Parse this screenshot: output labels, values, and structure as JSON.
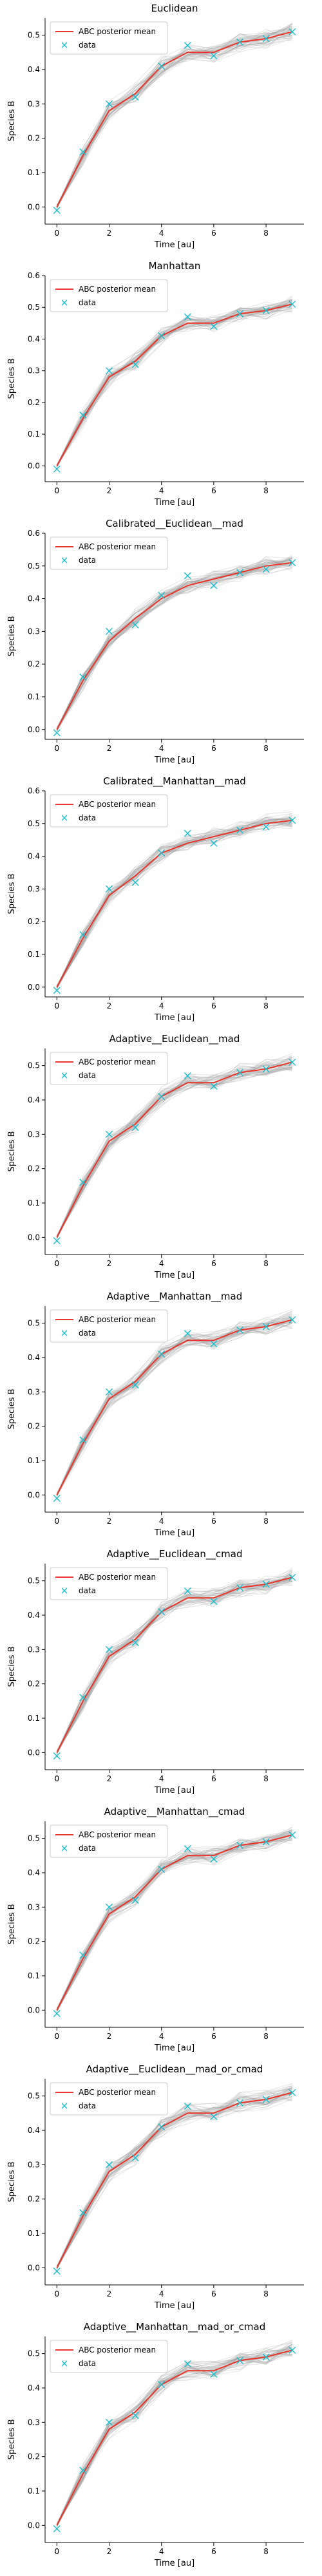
{
  "chart_data": [
    {
      "type": "line",
      "title": "Euclidean",
      "xlabel": "Time [au]",
      "ylabel": "Species B",
      "xlim": [
        -0.45,
        9.45
      ],
      "ylim": [
        -0.05,
        0.55
      ],
      "xticks": [
        0,
        2,
        4,
        6,
        8
      ],
      "yticks": [
        0.0,
        0.1,
        0.2,
        0.3,
        0.4,
        0.5
      ],
      "legend": "top-left",
      "grid": false,
      "series": [
        {
          "name": "ABC posterior mean",
          "style": "line",
          "color": "#e8362a",
          "x": [
            0,
            1,
            2,
            3,
            4,
            5,
            6,
            7,
            8,
            9
          ],
          "y": [
            0.0,
            0.15,
            0.28,
            0.33,
            0.41,
            0.45,
            0.45,
            0.48,
            0.49,
            0.51
          ]
        },
        {
          "name": "data",
          "style": "scatter",
          "color": "#17becf",
          "x": [
            0,
            1,
            2,
            3,
            4,
            5,
            6,
            7,
            8,
            9
          ],
          "y": [
            -0.01,
            0.16,
            0.3,
            0.32,
            0.41,
            0.47,
            0.44,
            0.48,
            0.49,
            0.51
          ]
        }
      ]
    },
    {
      "type": "line",
      "title": "Manhattan",
      "xlabel": "Time [au]",
      "ylabel": "Species B",
      "xlim": [
        -0.45,
        9.45
      ],
      "ylim": [
        -0.05,
        0.6
      ],
      "xticks": [
        0,
        2,
        4,
        6,
        8
      ],
      "yticks": [
        0.0,
        0.1,
        0.2,
        0.3,
        0.4,
        0.5,
        0.6
      ],
      "legend": "top-left",
      "grid": false,
      "series": [
        {
          "name": "ABC posterior mean",
          "style": "line",
          "color": "#e8362a",
          "x": [
            0,
            1,
            2,
            3,
            4,
            5,
            6,
            7,
            8,
            9
          ],
          "y": [
            0.0,
            0.15,
            0.28,
            0.33,
            0.41,
            0.45,
            0.45,
            0.48,
            0.49,
            0.51
          ]
        },
        {
          "name": "data",
          "style": "scatter",
          "color": "#17becf",
          "x": [
            0,
            1,
            2,
            3,
            4,
            5,
            6,
            7,
            8,
            9
          ],
          "y": [
            -0.01,
            0.16,
            0.3,
            0.32,
            0.41,
            0.47,
            0.44,
            0.48,
            0.49,
            0.51
          ]
        }
      ]
    },
    {
      "type": "line",
      "title": "Calibrated__Euclidean__mad",
      "xlabel": "Time [au]",
      "ylabel": "Species B",
      "xlim": [
        -0.45,
        9.45
      ],
      "ylim": [
        -0.03,
        0.6
      ],
      "xticks": [
        0,
        2,
        4,
        6,
        8
      ],
      "yticks": [
        0.0,
        0.1,
        0.2,
        0.3,
        0.4,
        0.5,
        0.6
      ],
      "legend": "top-left",
      "grid": false,
      "series": [
        {
          "name": "ABC posterior mean",
          "style": "line",
          "color": "#e8362a",
          "x": [
            0,
            1,
            2,
            3,
            4,
            5,
            6,
            7,
            8,
            9
          ],
          "y": [
            0.0,
            0.15,
            0.27,
            0.34,
            0.4,
            0.44,
            0.46,
            0.48,
            0.5,
            0.51
          ]
        },
        {
          "name": "data",
          "style": "scatter",
          "color": "#17becf",
          "x": [
            0,
            1,
            2,
            3,
            4,
            5,
            6,
            7,
            8,
            9
          ],
          "y": [
            -0.01,
            0.16,
            0.3,
            0.32,
            0.41,
            0.47,
            0.44,
            0.48,
            0.49,
            0.51
          ]
        }
      ]
    },
    {
      "type": "line",
      "title": "Calibrated__Manhattan__mad",
      "xlabel": "Time [au]",
      "ylabel": "Species B",
      "xlim": [
        -0.45,
        9.45
      ],
      "ylim": [
        -0.03,
        0.6
      ],
      "xticks": [
        0,
        2,
        4,
        6,
        8
      ],
      "yticks": [
        0.0,
        0.1,
        0.2,
        0.3,
        0.4,
        0.5,
        0.6
      ],
      "legend": "top-left",
      "grid": false,
      "series": [
        {
          "name": "ABC posterior mean",
          "style": "line",
          "color": "#e8362a",
          "x": [
            0,
            1,
            2,
            3,
            4,
            5,
            6,
            7,
            8,
            9
          ],
          "y": [
            0.0,
            0.15,
            0.28,
            0.34,
            0.41,
            0.44,
            0.46,
            0.48,
            0.5,
            0.51
          ]
        },
        {
          "name": "data",
          "style": "scatter",
          "color": "#17becf",
          "x": [
            0,
            1,
            2,
            3,
            4,
            5,
            6,
            7,
            8,
            9
          ],
          "y": [
            -0.01,
            0.16,
            0.3,
            0.32,
            0.41,
            0.47,
            0.44,
            0.48,
            0.49,
            0.51
          ]
        }
      ]
    },
    {
      "type": "line",
      "title": "Adaptive__Euclidean__mad",
      "xlabel": "Time [au]",
      "ylabel": "Species B",
      "xlim": [
        -0.45,
        9.45
      ],
      "ylim": [
        -0.05,
        0.55
      ],
      "xticks": [
        0,
        2,
        4,
        6,
        8
      ],
      "yticks": [
        0.0,
        0.1,
        0.2,
        0.3,
        0.4,
        0.5
      ],
      "legend": "top-left",
      "grid": false,
      "series": [
        {
          "name": "ABC posterior mean",
          "style": "line",
          "color": "#e8362a",
          "x": [
            0,
            1,
            2,
            3,
            4,
            5,
            6,
            7,
            8,
            9
          ],
          "y": [
            0.0,
            0.15,
            0.28,
            0.33,
            0.41,
            0.45,
            0.45,
            0.48,
            0.49,
            0.51
          ]
        },
        {
          "name": "data",
          "style": "scatter",
          "color": "#17becf",
          "x": [
            0,
            1,
            2,
            3,
            4,
            5,
            6,
            7,
            8,
            9
          ],
          "y": [
            -0.01,
            0.16,
            0.3,
            0.32,
            0.41,
            0.47,
            0.44,
            0.48,
            0.49,
            0.51
          ]
        }
      ]
    },
    {
      "type": "line",
      "title": "Adaptive__Manhattan__mad",
      "xlabel": "Time [au]",
      "ylabel": "Species B",
      "xlim": [
        -0.45,
        9.45
      ],
      "ylim": [
        -0.05,
        0.55
      ],
      "xticks": [
        0,
        2,
        4,
        6,
        8
      ],
      "yticks": [
        0.0,
        0.1,
        0.2,
        0.3,
        0.4,
        0.5
      ],
      "legend": "top-left",
      "grid": false,
      "series": [
        {
          "name": "ABC posterior mean",
          "style": "line",
          "color": "#e8362a",
          "x": [
            0,
            1,
            2,
            3,
            4,
            5,
            6,
            7,
            8,
            9
          ],
          "y": [
            0.0,
            0.15,
            0.28,
            0.33,
            0.41,
            0.45,
            0.45,
            0.48,
            0.49,
            0.51
          ]
        },
        {
          "name": "data",
          "style": "scatter",
          "color": "#17becf",
          "x": [
            0,
            1,
            2,
            3,
            4,
            5,
            6,
            7,
            8,
            9
          ],
          "y": [
            -0.01,
            0.16,
            0.3,
            0.32,
            0.41,
            0.47,
            0.44,
            0.48,
            0.49,
            0.51
          ]
        }
      ]
    },
    {
      "type": "line",
      "title": "Adaptive__Euclidean__cmad",
      "xlabel": "Time [au]",
      "ylabel": "Species B",
      "xlim": [
        -0.45,
        9.45
      ],
      "ylim": [
        -0.05,
        0.55
      ],
      "xticks": [
        0,
        2,
        4,
        6,
        8
      ],
      "yticks": [
        0.0,
        0.1,
        0.2,
        0.3,
        0.4,
        0.5
      ],
      "legend": "top-left",
      "grid": false,
      "series": [
        {
          "name": "ABC posterior mean",
          "style": "line",
          "color": "#e8362a",
          "x": [
            0,
            1,
            2,
            3,
            4,
            5,
            6,
            7,
            8,
            9
          ],
          "y": [
            0.0,
            0.15,
            0.28,
            0.33,
            0.41,
            0.45,
            0.45,
            0.48,
            0.49,
            0.51
          ]
        },
        {
          "name": "data",
          "style": "scatter",
          "color": "#17becf",
          "x": [
            0,
            1,
            2,
            3,
            4,
            5,
            6,
            7,
            8,
            9
          ],
          "y": [
            -0.01,
            0.16,
            0.3,
            0.32,
            0.41,
            0.47,
            0.44,
            0.48,
            0.49,
            0.51
          ]
        }
      ]
    },
    {
      "type": "line",
      "title": "Adaptive__Manhattan__cmad",
      "xlabel": "Time [au]",
      "ylabel": "Species B",
      "xlim": [
        -0.45,
        9.45
      ],
      "ylim": [
        -0.05,
        0.55
      ],
      "xticks": [
        0,
        2,
        4,
        6,
        8
      ],
      "yticks": [
        0.0,
        0.1,
        0.2,
        0.3,
        0.4,
        0.5
      ],
      "legend": "top-left",
      "grid": false,
      "series": [
        {
          "name": "ABC posterior mean",
          "style": "line",
          "color": "#e8362a",
          "x": [
            0,
            1,
            2,
            3,
            4,
            5,
            6,
            7,
            8,
            9
          ],
          "y": [
            0.0,
            0.15,
            0.28,
            0.33,
            0.41,
            0.45,
            0.45,
            0.48,
            0.49,
            0.51
          ]
        },
        {
          "name": "data",
          "style": "scatter",
          "color": "#17becf",
          "x": [
            0,
            1,
            2,
            3,
            4,
            5,
            6,
            7,
            8,
            9
          ],
          "y": [
            -0.01,
            0.16,
            0.3,
            0.32,
            0.41,
            0.47,
            0.44,
            0.48,
            0.49,
            0.51
          ]
        }
      ]
    },
    {
      "type": "line",
      "title": "Adaptive__Euclidean__mad_or_cmad",
      "xlabel": "Time [au]",
      "ylabel": "Species B",
      "xlim": [
        -0.45,
        9.45
      ],
      "ylim": [
        -0.05,
        0.55
      ],
      "xticks": [
        0,
        2,
        4,
        6,
        8
      ],
      "yticks": [
        0.0,
        0.1,
        0.2,
        0.3,
        0.4,
        0.5
      ],
      "legend": "top-left",
      "grid": false,
      "series": [
        {
          "name": "ABC posterior mean",
          "style": "line",
          "color": "#e8362a",
          "x": [
            0,
            1,
            2,
            3,
            4,
            5,
            6,
            7,
            8,
            9
          ],
          "y": [
            0.0,
            0.15,
            0.28,
            0.33,
            0.41,
            0.45,
            0.45,
            0.48,
            0.49,
            0.51
          ]
        },
        {
          "name": "data",
          "style": "scatter",
          "color": "#17becf",
          "x": [
            0,
            1,
            2,
            3,
            4,
            5,
            6,
            7,
            8,
            9
          ],
          "y": [
            -0.01,
            0.16,
            0.3,
            0.32,
            0.41,
            0.47,
            0.44,
            0.48,
            0.49,
            0.51
          ]
        }
      ]
    },
    {
      "type": "line",
      "title": "Adaptive__Manhattan__mad_or_cmad",
      "xlabel": "Time [au]",
      "ylabel": "Species B",
      "xlim": [
        -0.45,
        9.45
      ],
      "ylim": [
        -0.05,
        0.55
      ],
      "xticks": [
        0,
        2,
        4,
        6,
        8
      ],
      "yticks": [
        0.0,
        0.1,
        0.2,
        0.3,
        0.4,
        0.5
      ],
      "legend": "top-left",
      "grid": false,
      "series": [
        {
          "name": "ABC posterior mean",
          "style": "line",
          "color": "#e8362a",
          "x": [
            0,
            1,
            2,
            3,
            4,
            5,
            6,
            7,
            8,
            9
          ],
          "y": [
            0.0,
            0.15,
            0.28,
            0.33,
            0.41,
            0.45,
            0.45,
            0.48,
            0.49,
            0.51
          ]
        },
        {
          "name": "data",
          "style": "scatter",
          "color": "#17becf",
          "x": [
            0,
            1,
            2,
            3,
            4,
            5,
            6,
            7,
            8,
            9
          ],
          "y": [
            -0.01,
            0.16,
            0.3,
            0.32,
            0.41,
            0.47,
            0.44,
            0.48,
            0.49,
            0.51
          ]
        }
      ]
    }
  ],
  "band_color": "#9a9a9a",
  "axis_color": "#000000"
}
